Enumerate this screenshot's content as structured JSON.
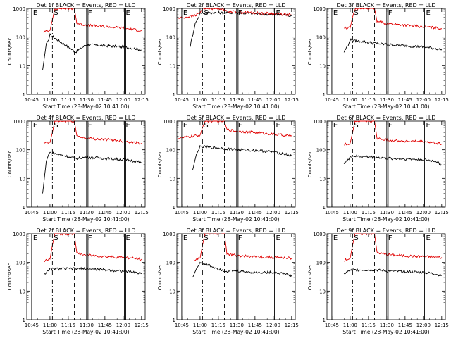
{
  "figure": {
    "type": "multi-panel",
    "colors": {
      "events": "#000000",
      "lld": "#e00000",
      "axes": "#000000",
      "background": "#ffffff"
    }
  },
  "chart_data": [
    {
      "type": "line",
      "title": "Det 1f BLACK = Events, RED = LLD",
      "xlabel": "Start Time (28-May-02 10:41:00)",
      "ylabel": "Counts/sec",
      "yscale": "log",
      "ylim": [
        1,
        1000
      ],
      "y_tick_labels": [
        "1",
        "10",
        "100",
        "1000"
      ],
      "xlim": [
        "10:41",
        "12:18"
      ],
      "x_tick_labels": [
        "10:45",
        "11:00",
        "11:15",
        "11:30",
        "11:45",
        "12:00",
        "12:15"
      ],
      "markers": [
        {
          "label": "E",
          "time": "10:45",
          "style": "solid"
        },
        {
          "label": "S",
          "time": "11:02",
          "style": "dash-dot"
        },
        {
          "label": "",
          "time": "11:20",
          "style": "dashed"
        },
        {
          "label": "F",
          "time": "11:30",
          "style": "double-solid"
        },
        {
          "label": "E",
          "time": "12:01",
          "style": "double-solid"
        }
      ],
      "series": [
        {
          "name": "Events",
          "color": "#000000",
          "x": [
            "10:54",
            "10:57",
            "10:59",
            "11:00",
            "11:21",
            "11:30",
            "11:45",
            "12:00",
            "12:10",
            "12:15"
          ],
          "y": [
            7,
            60,
            80,
            120,
            30,
            55,
            50,
            45,
            40,
            35
          ]
        },
        {
          "name": "LLD",
          "color": "#e00000",
          "x": [
            "10:55",
            "11:00",
            "11:02",
            "11:04",
            "11:20",
            "11:22",
            "11:30",
            "11:45",
            "12:00",
            "12:05",
            "12:15"
          ],
          "y": [
            150,
            170,
            400,
            1000,
            1000,
            300,
            260,
            230,
            210,
            190,
            170
          ]
        }
      ]
    },
    {
      "type": "line",
      "title": "Det 2f BLACK = Events, RED = LLD",
      "xlabel": "Start Time (28-May-02 10:41:00)",
      "ylabel": "Counts/sec",
      "yscale": "log",
      "ylim": [
        1,
        1000
      ],
      "y_tick_labels": [
        "1",
        "10",
        "100",
        "1000"
      ],
      "xlim": [
        "10:41",
        "12:18"
      ],
      "x_tick_labels": [
        "10:45",
        "11:00",
        "11:15",
        "11:30",
        "11:45",
        "12:00",
        "12:15"
      ],
      "markers": [
        {
          "label": "E",
          "time": "10:45",
          "style": "solid"
        },
        {
          "label": "S",
          "time": "11:02",
          "style": "dash-dot"
        },
        {
          "label": "",
          "time": "11:20",
          "style": "dashed"
        },
        {
          "label": "F",
          "time": "11:30",
          "style": "double-solid"
        },
        {
          "label": "E",
          "time": "12:01",
          "style": "double-solid"
        }
      ],
      "series": [
        {
          "name": "Events",
          "color": "#000000",
          "x": [
            "10:52",
            "10:56",
            "10:59",
            "11:00",
            "11:20",
            "11:30",
            "11:45",
            "12:00",
            "12:10",
            "12:15"
          ],
          "y": [
            50,
            300,
            500,
            700,
            700,
            700,
            650,
            600,
            600,
            550
          ]
        },
        {
          "name": "LLD",
          "color": "#e00000",
          "x": [
            "10:42",
            "10:55",
            "11:00",
            "11:02",
            "11:04",
            "11:18",
            "11:22",
            "11:30",
            "11:45",
            "12:00",
            "12:15"
          ],
          "y": [
            450,
            550,
            700,
            1000,
            1000,
            1000,
            800,
            750,
            700,
            650,
            600
          ]
        }
      ]
    },
    {
      "type": "line",
      "title": "Det 3f BLACK = Events, RED = LLD",
      "xlabel": "Start Time (28-May-02 10:41:00)",
      "ylabel": "Counts/sec",
      "yscale": "log",
      "ylim": [
        1,
        1000
      ],
      "y_tick_labels": [
        "1",
        "10",
        "100",
        "1000"
      ],
      "xlim": [
        "10:41",
        "12:18"
      ],
      "x_tick_labels": [
        "10:45",
        "11:00",
        "11:15",
        "11:30",
        "11:45",
        "12:00",
        "12:15"
      ],
      "markers": [
        {
          "label": "E",
          "time": "10:45",
          "style": "solid"
        },
        {
          "label": "S",
          "time": "11:02",
          "style": "dash-dot"
        },
        {
          "label": "",
          "time": "11:20",
          "style": "dashed"
        },
        {
          "label": "F",
          "time": "11:30",
          "style": "double-solid"
        },
        {
          "label": "E",
          "time": "12:01",
          "style": "double-solid"
        }
      ],
      "series": [
        {
          "name": "Events",
          "color": "#000000",
          "x": [
            "10:55",
            "10:59",
            "11:00",
            "11:21",
            "11:30",
            "11:45",
            "12:00",
            "12:10",
            "12:15"
          ],
          "y": [
            30,
            60,
            80,
            60,
            55,
            50,
            45,
            40,
            35
          ]
        },
        {
          "name": "LLD",
          "color": "#e00000",
          "x": [
            "10:55",
            "11:00",
            "11:02",
            "11:04",
            "11:20",
            "11:22",
            "11:30",
            "11:45",
            "12:00",
            "12:15"
          ],
          "y": [
            200,
            210,
            500,
            1000,
            1000,
            350,
            300,
            260,
            230,
            200
          ]
        }
      ]
    },
    {
      "type": "line",
      "title": "Det 4f BLACK = Events, RED = LLD",
      "xlabel": "Start Time (28-May-02 10:41:00)",
      "ylabel": "Counts/sec",
      "yscale": "log",
      "ylim": [
        1,
        1000
      ],
      "y_tick_labels": [
        "1",
        "10",
        "100",
        "1000"
      ],
      "xlim": [
        "10:41",
        "12:18"
      ],
      "x_tick_labels": [
        "10:45",
        "11:00",
        "11:15",
        "11:30",
        "11:45",
        "12:00",
        "12:15"
      ],
      "markers": [
        {
          "label": "E",
          "time": "10:45",
          "style": "solid"
        },
        {
          "label": "S",
          "time": "11:02",
          "style": "dash-dot"
        },
        {
          "label": "",
          "time": "11:20",
          "style": "dashed"
        },
        {
          "label": "F",
          "time": "11:30",
          "style": "double-solid"
        },
        {
          "label": "E",
          "time": "12:01",
          "style": "double-solid"
        }
      ],
      "series": [
        {
          "name": "Events",
          "color": "#000000",
          "x": [
            "10:54",
            "10:57",
            "10:59",
            "11:00",
            "11:21",
            "11:30",
            "11:45",
            "12:00",
            "12:10",
            "12:15"
          ],
          "y": [
            3,
            40,
            70,
            80,
            50,
            55,
            50,
            45,
            40,
            35
          ]
        },
        {
          "name": "LLD",
          "color": "#e00000",
          "x": [
            "10:55",
            "11:00",
            "11:02",
            "11:04",
            "11:20",
            "11:22",
            "11:30",
            "11:45",
            "12:00",
            "12:15"
          ],
          "y": [
            170,
            180,
            400,
            1000,
            1000,
            300,
            250,
            230,
            200,
            170
          ]
        }
      ]
    },
    {
      "type": "line",
      "title": "Det 5f BLACK = Events, RED = LLD",
      "xlabel": "Start Time (28-May-02 10:41:00)",
      "ylabel": "Counts/sec",
      "yscale": "log",
      "ylim": [
        1,
        1000
      ],
      "y_tick_labels": [
        "1",
        "10",
        "100",
        "1000"
      ],
      "xlim": [
        "10:41",
        "12:18"
      ],
      "x_tick_labels": [
        "10:45",
        "11:00",
        "11:15",
        "11:30",
        "11:45",
        "12:00",
        "12:15"
      ],
      "markers": [
        {
          "label": "E",
          "time": "10:45",
          "style": "solid"
        },
        {
          "label": "S",
          "time": "11:02",
          "style": "dash-dot"
        },
        {
          "label": "",
          "time": "11:20",
          "style": "dashed"
        },
        {
          "label": "F",
          "time": "11:30",
          "style": "double-solid"
        },
        {
          "label": "E",
          "time": "12:01",
          "style": "double-solid"
        }
      ],
      "series": [
        {
          "name": "Events",
          "color": "#000000",
          "x": [
            "10:54",
            "10:57",
            "10:59",
            "11:00",
            "11:21",
            "11:30",
            "11:45",
            "12:00",
            "12:10",
            "12:15"
          ],
          "y": [
            20,
            70,
            100,
            130,
            110,
            100,
            95,
            85,
            70,
            60
          ]
        },
        {
          "name": "LLD",
          "color": "#e00000",
          "x": [
            "10:42",
            "10:55",
            "11:00",
            "11:02",
            "11:04",
            "11:20",
            "11:22",
            "11:30",
            "11:45",
            "12:00",
            "12:15"
          ],
          "y": [
            250,
            300,
            320,
            600,
            1000,
            1000,
            500,
            450,
            400,
            350,
            300
          ]
        }
      ]
    },
    {
      "type": "line",
      "title": "Det 6f BLACK = Events, RED = LLD",
      "xlabel": "Start Time (28-May-02 10:41:00)",
      "ylabel": "Counts/sec",
      "yscale": "log",
      "ylim": [
        1,
        1000
      ],
      "y_tick_labels": [
        "1",
        "10",
        "100",
        "1000"
      ],
      "xlim": [
        "10:41",
        "12:18"
      ],
      "x_tick_labels": [
        "10:45",
        "11:00",
        "11:15",
        "11:30",
        "11:45",
        "12:00",
        "12:15"
      ],
      "markers": [
        {
          "label": "E",
          "time": "10:45",
          "style": "solid"
        },
        {
          "label": "S",
          "time": "11:02",
          "style": "dash-dot"
        },
        {
          "label": "",
          "time": "11:20",
          "style": "dashed"
        },
        {
          "label": "F",
          "time": "11:30",
          "style": "double-solid"
        },
        {
          "label": "E",
          "time": "12:01",
          "style": "double-solid"
        }
      ],
      "series": [
        {
          "name": "Events",
          "color": "#000000",
          "x": [
            "10:55",
            "10:59",
            "11:00",
            "11:21",
            "11:30",
            "11:45",
            "12:00",
            "12:10",
            "12:15"
          ],
          "y": [
            35,
            45,
            60,
            55,
            50,
            48,
            45,
            40,
            30
          ]
        },
        {
          "name": "LLD",
          "color": "#e00000",
          "x": [
            "10:55",
            "11:00",
            "11:02",
            "11:04",
            "11:20",
            "11:22",
            "11:30",
            "11:45",
            "12:00",
            "12:15"
          ],
          "y": [
            150,
            170,
            400,
            1000,
            1000,
            250,
            220,
            200,
            190,
            160
          ]
        }
      ]
    },
    {
      "type": "line",
      "title": "Det 7f BLACK = Events, RED = LLD",
      "xlabel": "Start Time (28-May-02 10:41:00)",
      "ylabel": "Counts/sec",
      "yscale": "log",
      "ylim": [
        1,
        1000
      ],
      "y_tick_labels": [
        "1",
        "10",
        "100",
        "1000"
      ],
      "xlim": [
        "10:41",
        "12:18"
      ],
      "x_tick_labels": [
        "10:45",
        "11:00",
        "11:15",
        "11:30",
        "11:45",
        "12:00",
        "12:15"
      ],
      "markers": [
        {
          "label": "E",
          "time": "10:45",
          "style": "solid"
        },
        {
          "label": "S",
          "time": "11:02",
          "style": "dash-dot"
        },
        {
          "label": "",
          "time": "11:20",
          "style": "dashed"
        },
        {
          "label": "F",
          "time": "11:30",
          "style": "double-solid"
        },
        {
          "label": "E",
          "time": "12:01",
          "style": "double-solid"
        }
      ],
      "series": [
        {
          "name": "Events",
          "color": "#000000",
          "x": [
            "10:55",
            "10:59",
            "11:00",
            "11:21",
            "11:30",
            "11:45",
            "12:00",
            "12:10",
            "12:15"
          ],
          "y": [
            40,
            50,
            60,
            60,
            60,
            55,
            50,
            45,
            40
          ]
        },
        {
          "name": "LLD",
          "color": "#e00000",
          "x": [
            "10:55",
            "11:00",
            "11:02",
            "11:04",
            "11:20",
            "11:22",
            "11:30",
            "11:45",
            "12:00",
            "12:15"
          ],
          "y": [
            110,
            130,
            400,
            1000,
            1000,
            200,
            180,
            160,
            150,
            130
          ]
        }
      ]
    },
    {
      "type": "line",
      "title": "Det 8f BLACK = Events, RED = LLD",
      "xlabel": "Start Time (28-May-02 10:41:00)",
      "ylabel": "Counts/sec",
      "yscale": "log",
      "ylim": [
        1,
        1000
      ],
      "y_tick_labels": [
        "1",
        "10",
        "100",
        "1000"
      ],
      "xlim": [
        "10:41",
        "12:18"
      ],
      "x_tick_labels": [
        "10:45",
        "11:00",
        "11:15",
        "11:30",
        "11:45",
        "12:00",
        "12:15"
      ],
      "markers": [
        {
          "label": "E",
          "time": "10:45",
          "style": "solid"
        },
        {
          "label": "S",
          "time": "11:02",
          "style": "dash-dot"
        },
        {
          "label": "",
          "time": "11:20",
          "style": "dashed"
        },
        {
          "label": "F",
          "time": "11:30",
          "style": "double-solid"
        },
        {
          "label": "E",
          "time": "12:01",
          "style": "double-solid"
        }
      ],
      "series": [
        {
          "name": "Events",
          "color": "#000000",
          "x": [
            "10:54",
            "10:57",
            "10:59",
            "11:00",
            "11:21",
            "11:30",
            "11:45",
            "12:00",
            "12:10",
            "12:15"
          ],
          "y": [
            30,
            60,
            80,
            100,
            50,
            50,
            45,
            45,
            40,
            35
          ]
        },
        {
          "name": "LLD",
          "color": "#e00000",
          "x": [
            "10:55",
            "11:00",
            "11:02",
            "11:04",
            "11:20",
            "11:22",
            "11:30",
            "11:45",
            "12:00",
            "12:15"
          ],
          "y": [
            120,
            140,
            400,
            1000,
            1000,
            200,
            170,
            160,
            150,
            140
          ]
        }
      ]
    },
    {
      "type": "line",
      "title": "Det 9f BLACK = Events, RED = LLD",
      "xlabel": "Start Time (28-May-02 10:41:00)",
      "ylabel": "Counts/sec",
      "yscale": "log",
      "ylim": [
        1,
        1000
      ],
      "y_tick_labels": [
        "1",
        "10",
        "100",
        "1000"
      ],
      "xlim": [
        "10:41",
        "12:18"
      ],
      "x_tick_labels": [
        "10:45",
        "11:00",
        "11:15",
        "11:30",
        "11:45",
        "12:00",
        "12:15"
      ],
      "markers": [
        {
          "label": "E",
          "time": "10:45",
          "style": "solid"
        },
        {
          "label": "S",
          "time": "11:02",
          "style": "dash-dot"
        },
        {
          "label": "",
          "time": "11:20",
          "style": "dashed"
        },
        {
          "label": "F",
          "time": "11:30",
          "style": "double-solid"
        },
        {
          "label": "E",
          "time": "12:01",
          "style": "double-solid"
        }
      ],
      "series": [
        {
          "name": "Events",
          "color": "#000000",
          "x": [
            "10:55",
            "10:59",
            "11:00",
            "11:21",
            "11:30",
            "11:45",
            "12:00",
            "12:10",
            "12:15"
          ],
          "y": [
            40,
            50,
            55,
            55,
            50,
            48,
            45,
            40,
            35
          ]
        },
        {
          "name": "LLD",
          "color": "#e00000",
          "x": [
            "10:55",
            "11:00",
            "11:02",
            "11:04",
            "11:20",
            "11:22",
            "11:30",
            "11:45",
            "12:00",
            "12:15"
          ],
          "y": [
            120,
            140,
            400,
            1000,
            1000,
            220,
            190,
            170,
            160,
            150
          ]
        }
      ]
    }
  ]
}
